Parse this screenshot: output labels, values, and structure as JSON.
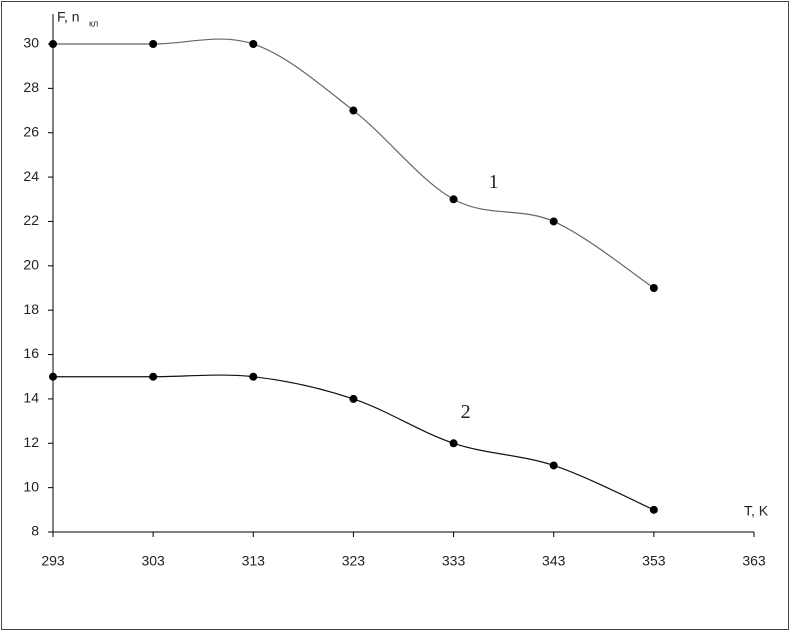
{
  "chart_data": {
    "type": "line",
    "y_label": "F, n",
    "y_label_sub": "кл",
    "x_label": "T, K",
    "x": [
      293,
      303,
      313,
      323,
      333,
      343,
      353
    ],
    "series": [
      {
        "name": "1",
        "color": "#666666",
        "values": [
          30,
          30,
          30,
          27,
          23,
          22,
          19
        ]
      },
      {
        "name": "2",
        "color": "#111111",
        "values": [
          15,
          15,
          15,
          14,
          12,
          11,
          9
        ]
      }
    ],
    "xlim": [
      293,
      363
    ],
    "xticks": [
      293,
      303,
      313,
      323,
      333,
      343,
      353,
      363
    ],
    "ylim": [
      8,
      30
    ],
    "yticks": [
      8,
      10,
      12,
      14,
      16,
      18,
      20,
      22,
      24,
      26,
      28,
      30
    ],
    "marker_color": "#000000"
  }
}
